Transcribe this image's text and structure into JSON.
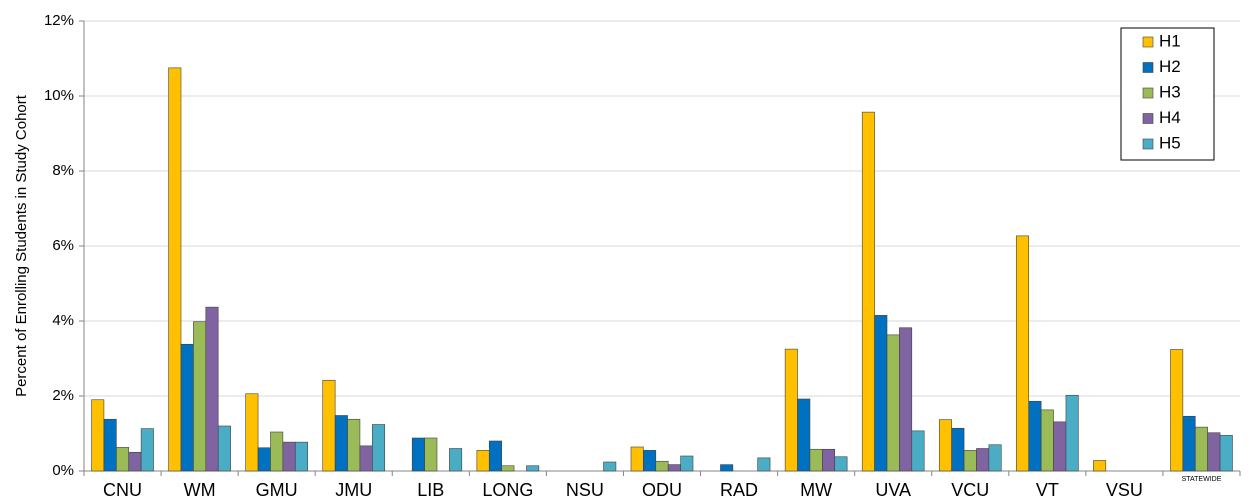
{
  "chart_data": {
    "type": "bar",
    "y_axis_label": "Percent of Enrolling Students in Study Cohort",
    "categories": [
      "CNU",
      "WM",
      "GMU",
      "JMU",
      "LIB",
      "LONG",
      "NSU",
      "ODU",
      "RAD",
      "MW",
      "UVA",
      "VCU",
      "VT",
      "VSU",
      "STATEWIDE"
    ],
    "series": [
      {
        "name": "H1",
        "color": "#ffc000",
        "values": [
          1.9,
          10.75,
          2.06,
          2.42,
          0,
          0.55,
          0,
          0.64,
          0,
          3.25,
          9.57,
          1.37,
          6.27,
          0.28,
          3.24
        ]
      },
      {
        "name": "H2",
        "color": "#0070c0",
        "values": [
          1.38,
          3.38,
          0.62,
          1.48,
          0.88,
          0.8,
          0,
          0.55,
          0.17,
          1.92,
          4.15,
          1.14,
          1.86,
          0,
          1.46
        ]
      },
      {
        "name": "H3",
        "color": "#9bbb59",
        "values": [
          0.63,
          3.98,
          1.04,
          1.38,
          0.88,
          0.14,
          0,
          0.26,
          0,
          0.58,
          3.63,
          0.55,
          1.63,
          0,
          1.17
        ]
      },
      {
        "name": "H4",
        "color": "#8064a2",
        "values": [
          0.5,
          4.37,
          0.77,
          0.67,
          0,
          0,
          0,
          0.17,
          0,
          0.58,
          3.82,
          0.6,
          1.31,
          0,
          1.02
        ]
      },
      {
        "name": "H5",
        "color": "#4bacc6",
        "values": [
          1.13,
          1.2,
          0.77,
          1.24,
          0.6,
          0.14,
          0.24,
          0.4,
          0.35,
          0.38,
          1.07,
          0.7,
          2.02,
          0,
          0.95
        ]
      }
    ],
    "ylim": [
      0,
      12
    ],
    "yticks": [
      {
        "value": 0,
        "label": "0%"
      },
      {
        "value": 2,
        "label": "2%"
      },
      {
        "value": 4,
        "label": "4%"
      },
      {
        "value": 6,
        "label": "6%"
      },
      {
        "value": 8,
        "label": "8%"
      },
      {
        "value": 10,
        "label": "10%"
      },
      {
        "value": 12,
        "label": "12%"
      }
    ],
    "grid": true,
    "legend": "top-right"
  }
}
